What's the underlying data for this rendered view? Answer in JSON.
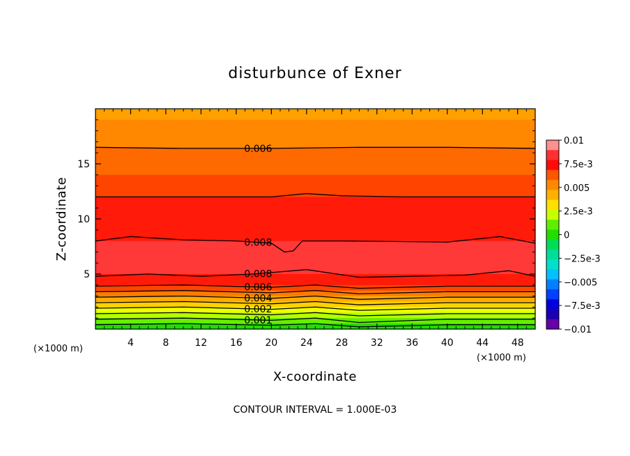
{
  "chart_data": {
    "type": "heatmap",
    "subtype": "filled-contour",
    "title": "disturbunce of Exner",
    "xlabel": "X-coordinate",
    "ylabel": "Z-coordinate",
    "x_unit": "(×1000 m)",
    "xlim": [
      0,
      50
    ],
    "ylim": [
      0,
      20
    ],
    "x_ticks": [
      "4",
      "8",
      "12",
      "16",
      "20",
      "24",
      "28",
      "32",
      "36",
      "40",
      "44",
      "48"
    ],
    "y_ticks": [
      "5",
      "10",
      "15"
    ],
    "footer": "CONTOUR INTERVAL = 1.000E-03",
    "colorbar": {
      "labels": [
        "0.01",
        "7.5e-3",
        "0.005",
        "2.5e-3",
        "0",
        "−2.5e-3",
        "−0.005",
        "−7.5e-3",
        "−0.01"
      ],
      "colors": [
        "#ff9090",
        "#ff3030",
        "#ff0a0a",
        "#ff5500",
        "#ff8800",
        "#ffb000",
        "#ffe000",
        "#c8ff00",
        "#60ee00",
        "#22dd00",
        "#00dd55",
        "#00dd99",
        "#00e0cc",
        "#00c0ff",
        "#0080ff",
        "#0040ff",
        "#0000dd",
        "#1a00b0",
        "#6600aa"
      ]
    },
    "fill_bands": [
      {
        "name": "band-z19-20",
        "z0": 19.0,
        "z1": 20.0,
        "color": "#ffa000"
      },
      {
        "name": "band-z16-19",
        "z0": 16.5,
        "z1": 19.0,
        "color": "#ff8800"
      },
      {
        "name": "band-z14-16",
        "z0": 14.0,
        "z1": 16.5,
        "color": "#ff6a00"
      },
      {
        "name": "band-z12-14",
        "z0": 12.0,
        "z1": 14.0,
        "color": "#ff4400"
      },
      {
        "name": "band-z8-12",
        "z0": 8.0,
        "z1": 12.0,
        "color": "#ff1a0a"
      },
      {
        "name": "band-z5-8",
        "z0": 5.0,
        "z1": 8.0,
        "color": "#ff3838"
      },
      {
        "name": "band-z4-5",
        "z0": 4.0,
        "z1": 5.0,
        "color": "#ff1a0a"
      },
      {
        "name": "band-z3.5-4",
        "z0": 3.5,
        "z1": 4.0,
        "color": "#ff4400"
      },
      {
        "name": "band-z3-3.5",
        "z0": 3.0,
        "z1": 3.5,
        "color": "#ff7a00"
      },
      {
        "name": "band-z2.5-3",
        "z0": 2.5,
        "z1": 3.0,
        "color": "#ffaa00"
      },
      {
        "name": "band-z2-2.5",
        "z0": 2.0,
        "z1": 2.5,
        "color": "#ffd000"
      },
      {
        "name": "band-z1.5-2",
        "z0": 1.5,
        "z1": 2.0,
        "color": "#eeff00"
      },
      {
        "name": "band-z1-1.5",
        "z0": 1.0,
        "z1": 1.5,
        "color": "#b4ff00"
      },
      {
        "name": "band-z0.5-1",
        "z0": 0.5,
        "z1": 1.0,
        "color": "#66ee00"
      },
      {
        "name": "band-z0-0.5",
        "z0": 0.0,
        "z1": 0.5,
        "color": "#22dd00"
      }
    ],
    "contours": [
      {
        "level": "0.006",
        "points": [
          [
            0,
            16.5
          ],
          [
            10,
            16.4
          ],
          [
            20,
            16.4
          ],
          [
            30,
            16.5
          ],
          [
            40,
            16.5
          ],
          [
            50,
            16.4
          ]
        ]
      },
      {
        "level": "",
        "points": [
          [
            0,
            12.0
          ],
          [
            10,
            12.0
          ],
          [
            20,
            12.0
          ],
          [
            24,
            12.3
          ],
          [
            28,
            12.1
          ],
          [
            35,
            12.0
          ],
          [
            50,
            12.0
          ]
        ]
      },
      {
        "level": "0.008",
        "points": [
          [
            0,
            8.0
          ],
          [
            4,
            8.4
          ],
          [
            10,
            8.1
          ],
          [
            16,
            8.0
          ],
          [
            20,
            7.8
          ],
          [
            21.5,
            7.0
          ],
          [
            22.5,
            7.1
          ],
          [
            23.5,
            8.0
          ],
          [
            28,
            8.0
          ],
          [
            40,
            7.9
          ],
          [
            46,
            8.4
          ],
          [
            50,
            7.8
          ]
        ]
      },
      {
        "level": "0.008",
        "points": [
          [
            0,
            4.8
          ],
          [
            6,
            5.0
          ],
          [
            12,
            4.8
          ],
          [
            18,
            5.0
          ],
          [
            24,
            5.4
          ],
          [
            30,
            4.7
          ],
          [
            36,
            4.8
          ],
          [
            42,
            4.9
          ],
          [
            47,
            5.3
          ],
          [
            50,
            4.8
          ]
        ]
      },
      {
        "level": "0.006",
        "points": [
          [
            0,
            3.9
          ],
          [
            10,
            4.0
          ],
          [
            20,
            3.8
          ],
          [
            25,
            4.0
          ],
          [
            30,
            3.7
          ],
          [
            40,
            3.9
          ],
          [
            50,
            3.9
          ]
        ]
      },
      {
        "level": "",
        "points": [
          [
            0,
            3.4
          ],
          [
            10,
            3.5
          ],
          [
            20,
            3.3
          ],
          [
            25,
            3.5
          ],
          [
            30,
            3.2
          ],
          [
            40,
            3.4
          ],
          [
            50,
            3.4
          ]
        ]
      },
      {
        "level": "0.004",
        "points": [
          [
            0,
            2.9
          ],
          [
            10,
            3.0
          ],
          [
            20,
            2.8
          ],
          [
            25,
            3.0
          ],
          [
            30,
            2.7
          ],
          [
            40,
            2.9
          ],
          [
            50,
            2.9
          ]
        ]
      },
      {
        "level": "",
        "points": [
          [
            0,
            2.4
          ],
          [
            10,
            2.5
          ],
          [
            20,
            2.3
          ],
          [
            25,
            2.5
          ],
          [
            30,
            2.2
          ],
          [
            40,
            2.4
          ],
          [
            50,
            2.4
          ]
        ]
      },
      {
        "level": "0.002",
        "points": [
          [
            0,
            1.9
          ],
          [
            10,
            2.0
          ],
          [
            20,
            1.8
          ],
          [
            25,
            2.0
          ],
          [
            30,
            1.7
          ],
          [
            40,
            1.9
          ],
          [
            50,
            1.9
          ]
        ]
      },
      {
        "level": "",
        "points": [
          [
            0,
            1.4
          ],
          [
            10,
            1.5
          ],
          [
            20,
            1.3
          ],
          [
            25,
            1.5
          ],
          [
            30,
            1.2
          ],
          [
            40,
            1.4
          ],
          [
            50,
            1.4
          ]
        ]
      },
      {
        "level": "0.001",
        "points": [
          [
            0,
            0.9
          ],
          [
            10,
            1.0
          ],
          [
            20,
            0.8
          ],
          [
            25,
            1.0
          ],
          [
            30,
            0.6
          ],
          [
            40,
            0.9
          ],
          [
            50,
            0.9
          ]
        ]
      },
      {
        "level": "",
        "points": [
          [
            0,
            0.4
          ],
          [
            10,
            0.5
          ],
          [
            20,
            0.35
          ],
          [
            25,
            0.5
          ],
          [
            30,
            0.2
          ],
          [
            40,
            0.4
          ],
          [
            50,
            0.4
          ]
        ]
      }
    ]
  }
}
